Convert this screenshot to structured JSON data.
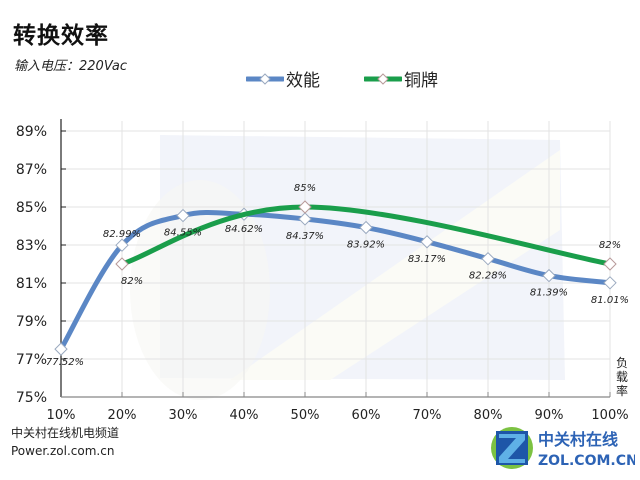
{
  "header": {
    "title": "转换效率",
    "subtitle": "输入电压：220Vac"
  },
  "legend": {
    "items": [
      {
        "label": "效能",
        "color": "#5b87c5"
      },
      {
        "label": "铜牌",
        "color": "#1a9e4b"
      }
    ]
  },
  "axes": {
    "x_title": "负载率",
    "y_ticks": [
      "89%",
      "87%",
      "85%",
      "83%",
      "81%",
      "79%",
      "77%",
      "75%"
    ],
    "x_ticks": [
      "10%",
      "20%",
      "30%",
      "40%",
      "50%",
      "60%",
      "70%",
      "80%",
      "90%",
      "100%"
    ]
  },
  "footer": {
    "source_line1": "中关村在线机电频道",
    "source_line2": "Power.zol.com.cn",
    "watermark_cn": "中关村在线",
    "watermark_en": "ZOL.COM.CN"
  },
  "chart_data": {
    "type": "line",
    "title": "转换效率",
    "subtitle": "输入电压：220Vac",
    "xlabel": "负载率",
    "ylabel": "",
    "x": [
      "10%",
      "20%",
      "30%",
      "40%",
      "50%",
      "60%",
      "70%",
      "80%",
      "90%",
      "100%"
    ],
    "ylim": [
      75,
      89
    ],
    "y_tick_step": 2,
    "grid": true,
    "legend_position": "top",
    "series": [
      {
        "name": "效能",
        "color": "#5b87c5",
        "x": [
          "10%",
          "20%",
          "30%",
          "40%",
          "50%",
          "60%",
          "70%",
          "80%",
          "90%",
          "100%"
        ],
        "values": [
          77.52,
          82.99,
          84.55,
          84.62,
          84.37,
          83.92,
          83.17,
          82.28,
          81.39,
          81.01
        ],
        "labels": [
          "77.52%",
          "82.99%",
          "84.55%",
          "84.62%",
          "84.37%",
          "83.92%",
          "83.17%",
          "82.28%",
          "81.39%",
          "81.01%"
        ]
      },
      {
        "name": "铜牌",
        "color": "#1a9e4b",
        "x": [
          "20%",
          "50%",
          "100%"
        ],
        "values": [
          82,
          85,
          82
        ],
        "labels": [
          "82%",
          "85%",
          "82%"
        ]
      }
    ]
  }
}
